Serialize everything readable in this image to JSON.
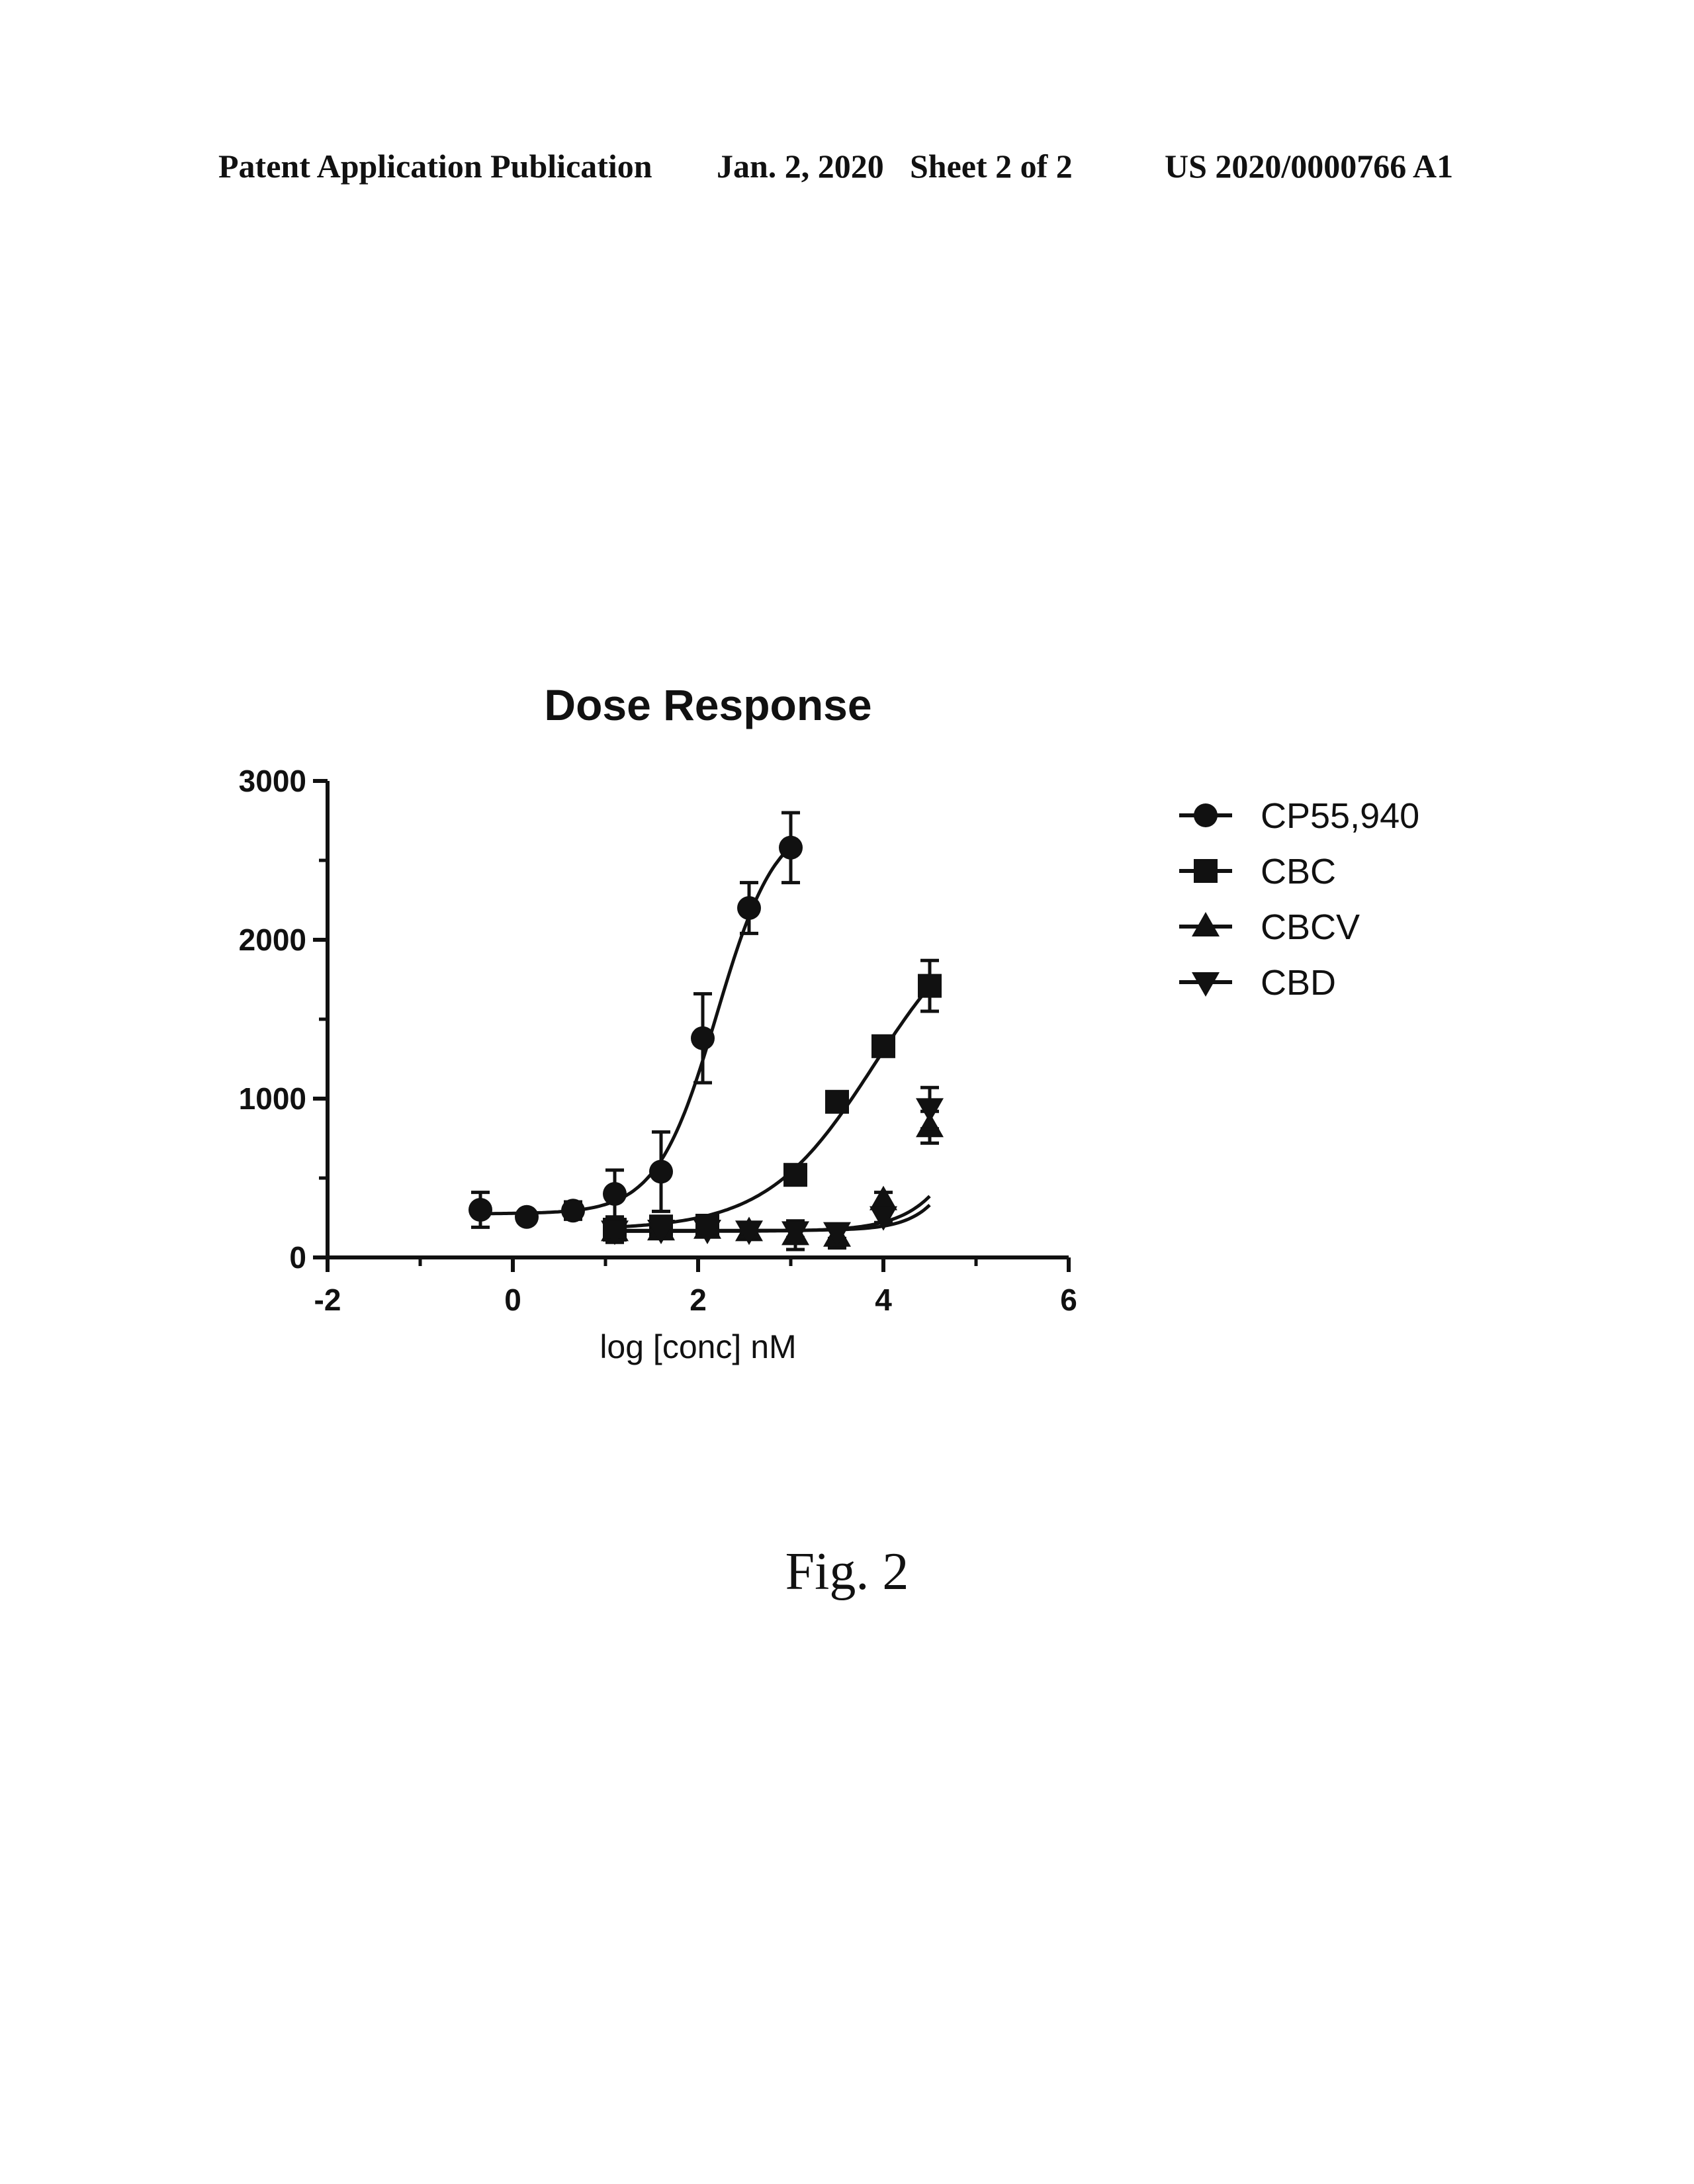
{
  "header": {
    "left": "Patent Application Publication",
    "date": "Jan. 2, 2020",
    "sheet": "Sheet 2 of 2",
    "number": "US 2020/0000766 A1"
  },
  "figure_caption": "Fig. 2",
  "colors": {
    "ink": "#111111",
    "background": "#ffffff"
  },
  "chart_data": {
    "type": "line",
    "title": "Dose Response",
    "xlabel": "log [conc] nM",
    "ylabel": "",
    "xlim": [
      -2,
      6
    ],
    "ylim": [
      0,
      3000
    ],
    "x_ticks": [
      "-2",
      "0",
      "2",
      "4",
      "6"
    ],
    "y_ticks": [
      "0",
      "1000",
      "2000",
      "3000"
    ],
    "legend_position": "right",
    "grid": false,
    "series": [
      {
        "name": "CP55,940",
        "marker": "circle",
        "points": [
          {
            "x": -0.35,
            "y": 300,
            "err": 110
          },
          {
            "x": 0.15,
            "y": 255,
            "err": 0
          },
          {
            "x": 0.65,
            "y": 295,
            "err": 55
          },
          {
            "x": 1.1,
            "y": 400,
            "err": 150
          },
          {
            "x": 1.6,
            "y": 540,
            "err": 250
          },
          {
            "x": 2.05,
            "y": 1380,
            "err": 280
          },
          {
            "x": 2.55,
            "y": 2200,
            "err": 160
          },
          {
            "x": 3.0,
            "y": 2580,
            "err": 220
          }
        ],
        "fit": {
          "bottom": 275,
          "top": 2780,
          "logEC50": 2.2,
          "hill": 1.35
        }
      },
      {
        "name": "CBC",
        "marker": "square",
        "points": [
          {
            "x": 1.1,
            "y": 175,
            "err": 80
          },
          {
            "x": 1.6,
            "y": 195,
            "err": 50
          },
          {
            "x": 2.1,
            "y": 200,
            "err": 45
          },
          {
            "x": 3.05,
            "y": 520,
            "err": 40
          },
          {
            "x": 3.5,
            "y": 980,
            "err": 40
          },
          {
            "x": 4.0,
            "y": 1330,
            "err": 50
          },
          {
            "x": 4.5,
            "y": 1710,
            "err": 160
          }
        ],
        "fit": {
          "bottom": 175,
          "top": 2250,
          "logEC50": 3.9,
          "hill": 0.75
        }
      },
      {
        "name": "CBCV",
        "marker": "triangle-up",
        "points": [
          {
            "x": 1.1,
            "y": 165,
            "err": 50
          },
          {
            "x": 1.6,
            "y": 170,
            "err": 40
          },
          {
            "x": 2.1,
            "y": 180,
            "err": 40
          },
          {
            "x": 2.55,
            "y": 165,
            "err": 50
          },
          {
            "x": 3.05,
            "y": 140,
            "err": 90
          },
          {
            "x": 3.5,
            "y": 130,
            "err": 70
          },
          {
            "x": 4.0,
            "y": 360,
            "err": 50
          },
          {
            "x": 4.5,
            "y": 820,
            "err": 100
          }
        ],
        "fit": {
          "bottom": 165,
          "top": 5000,
          "logEC50": 5.6,
          "hill": 1.2
        }
      },
      {
        "name": "CBD",
        "marker": "triangle-down",
        "points": [
          {
            "x": 1.1,
            "y": 170,
            "err": 60
          },
          {
            "x": 1.6,
            "y": 175,
            "err": 50
          },
          {
            "x": 2.1,
            "y": 175,
            "err": 40
          },
          {
            "x": 2.55,
            "y": 170,
            "err": 40
          },
          {
            "x": 3.05,
            "y": 165,
            "err": 40
          },
          {
            "x": 3.5,
            "y": 160,
            "err": 40
          },
          {
            "x": 4.0,
            "y": 260,
            "err": 40
          },
          {
            "x": 4.5,
            "y": 940,
            "err": 130
          }
        ],
        "fit": {
          "bottom": 170,
          "top": 6000,
          "logEC50": 5.5,
          "hill": 1.55
        }
      }
    ]
  }
}
